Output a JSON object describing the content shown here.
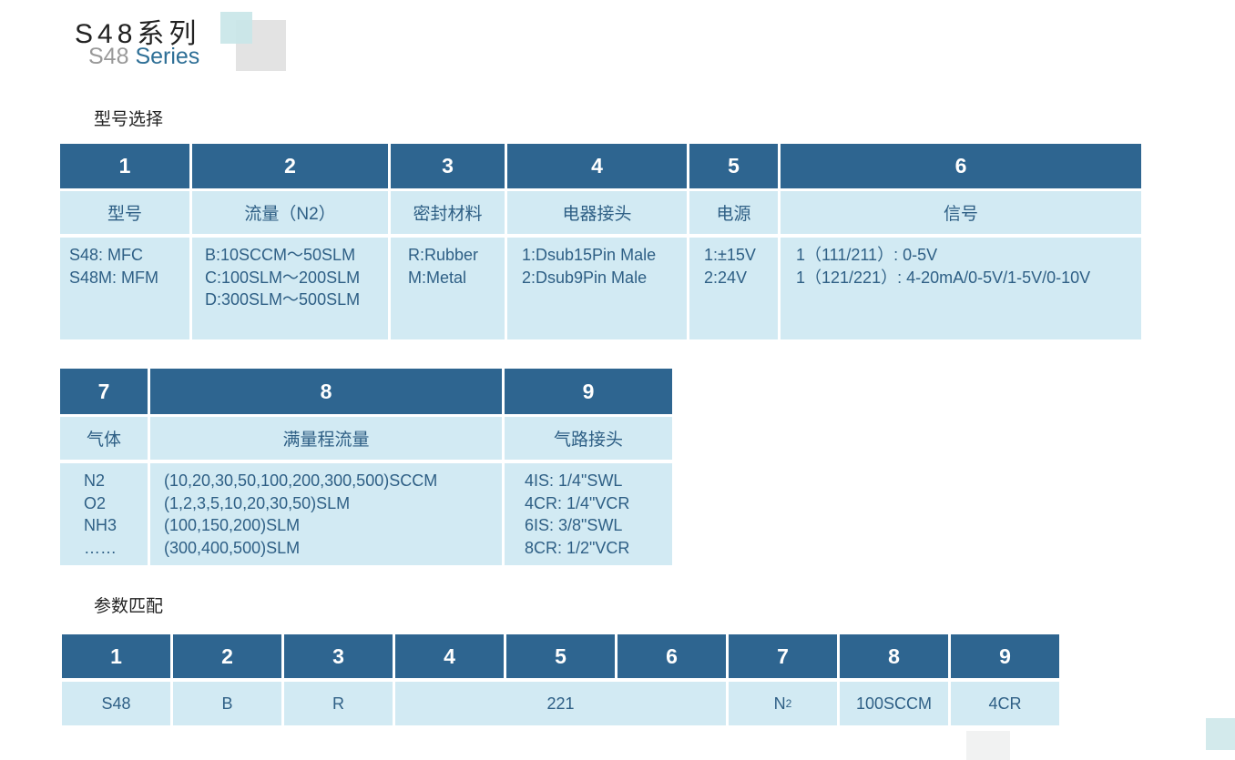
{
  "header": {
    "title": "S48系列",
    "subtitle_model": "S48",
    "subtitle_series": "Series"
  },
  "section1": {
    "title": "型号选择",
    "columns": [
      {
        "num": "1",
        "label": "型号",
        "items": [
          "S48: MFC",
          "S48M: MFM"
        ]
      },
      {
        "num": "2",
        "label": "流量（N2）",
        "items": [
          "B:10SCCM～50SLM",
          "C:100SLM～200SLM",
          "D:300SLM～500SLM"
        ]
      },
      {
        "num": "3",
        "label": "密封材料",
        "items": [
          "R:Rubber",
          "M:Metal"
        ]
      },
      {
        "num": "4",
        "label": "电器接头",
        "items": [
          "1:Dsub15Pin Male",
          "2:Dsub9Pin Male"
        ]
      },
      {
        "num": "5",
        "label": "电源",
        "items": [
          "1:±15V",
          "2:24V"
        ]
      },
      {
        "num": "6",
        "label": "信号",
        "items": [
          "1（111/211）: 0-5V",
          "1（121/221）: 4-20mA/0-5V/1-5V/0-10V"
        ]
      }
    ]
  },
  "section2": {
    "columns": [
      {
        "num": "7",
        "label": "气体",
        "items": [
          "N2",
          "O2",
          "NH3",
          "……"
        ]
      },
      {
        "num": "8",
        "label": "满量程流量",
        "items": [
          "(10,20,30,50,100,200,300,500)SCCM",
          "(1,2,3,5,10,20,30,50)SLM",
          "(100,150,200)SLM",
          "(300,400,500)SLM"
        ]
      },
      {
        "num": "9",
        "label": "气路接头",
        "items": [
          "4IS: 1/4\"SWL",
          "4CR: 1/4\"VCR",
          "6IS: 3/8\"SWL",
          "8CR: 1/2\"VCR"
        ]
      }
    ]
  },
  "section3": {
    "title": "参数匹配",
    "headers": [
      "1",
      "2",
      "3",
      "4",
      "5",
      "6",
      "7",
      "8",
      "9"
    ],
    "values": {
      "model": "S48",
      "flow": "B",
      "seal": "R",
      "connector_power_signal": "221",
      "gas": "N",
      "gas_sub": "2",
      "full_scale": "100SCCM",
      "fitting": "4CR"
    }
  },
  "colors": {
    "header_bg": "#2e6590",
    "cell_bg": "#d2eaf3",
    "text": "#2e5f85",
    "accent": "#2e6f96"
  }
}
